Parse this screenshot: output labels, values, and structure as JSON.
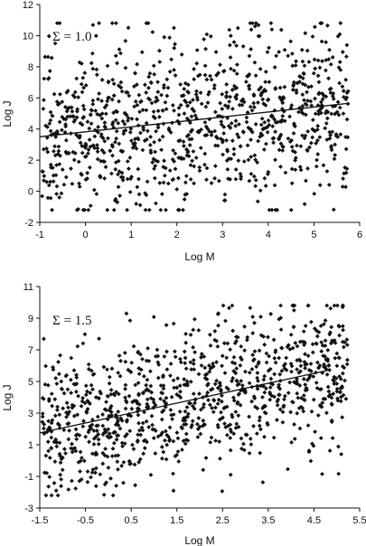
{
  "chart_data": [
    {
      "type": "scatter",
      "annotation": "Σ = 1.0",
      "xlabel": "Log M",
      "ylabel": "Log J",
      "xlim": [
        -1,
        6
      ],
      "ylim": [
        -2,
        12
      ],
      "xticks": [
        "-1",
        "0",
        "1",
        "2",
        "3",
        "4",
        "5",
        "6"
      ],
      "yticks": [
        "-2",
        "0",
        "2",
        "4",
        "6",
        "8",
        "10",
        "12"
      ],
      "trendline": {
        "x": [
          -1,
          5.75
        ],
        "y": [
          3.5,
          5.65
        ]
      },
      "n_points": 1000,
      "noise_sd": 2.7,
      "seed": 7,
      "grid": false
    },
    {
      "type": "scatter",
      "annotation": "Σ = 1.5",
      "xlabel": "Log M",
      "ylabel": "Log J",
      "xlim": [
        -1.5,
        5.5
      ],
      "ylim": [
        -3,
        11
      ],
      "xticks": [
        "-1.5",
        "-0.5",
        "0.5",
        "1.5",
        "2.5",
        "3.5",
        "4.5",
        "5.5"
      ],
      "yticks": [
        "-3",
        "-1",
        "1",
        "3",
        "5",
        "7",
        "9",
        "11"
      ],
      "trendline": {
        "x": [
          -1.5,
          4.8
        ],
        "y": [
          1.75,
          5.7
        ]
      },
      "n_points": 1000,
      "noise_sd": 2.3,
      "seed": 13,
      "grid": false
    }
  ]
}
